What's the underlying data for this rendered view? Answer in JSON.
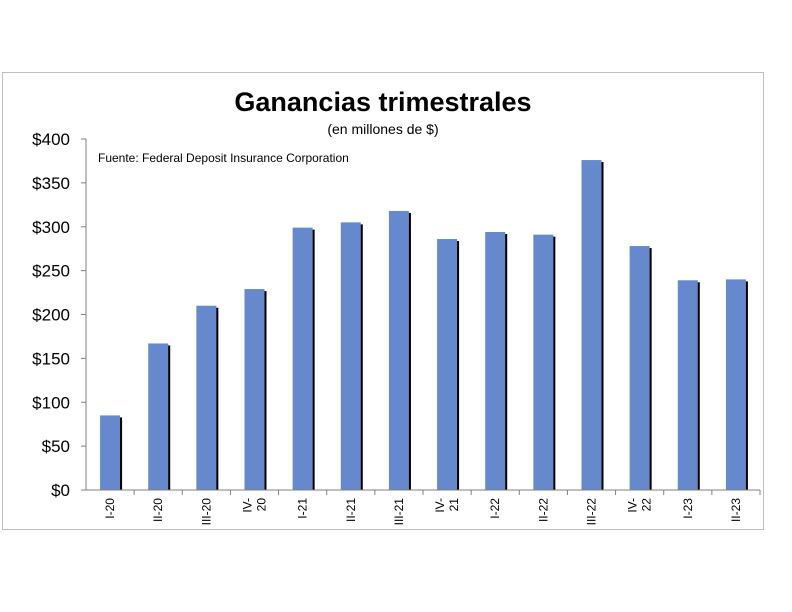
{
  "chart_data": {
    "type": "bar",
    "title": "Ganancias trimestrales",
    "subtitle": "(en millones de $)",
    "source": "Fuente: Federal Deposit Insurance Corporation",
    "xlabel": "",
    "ylabel": "",
    "categories": [
      [
        "I-20"
      ],
      [
        "II-20"
      ],
      [
        "III-20"
      ],
      [
        "IV-",
        "20"
      ],
      [
        "I-21"
      ],
      [
        "II-21"
      ],
      [
        "III-21"
      ],
      [
        "IV-",
        "21"
      ],
      [
        "I-22"
      ],
      [
        "II-22"
      ],
      [
        "III-22"
      ],
      [
        "IV-",
        "22"
      ],
      [
        "I-23"
      ],
      [
        "II-23"
      ]
    ],
    "values": [
      85,
      167,
      210,
      229,
      299,
      305,
      318,
      286,
      294,
      291,
      376,
      278,
      239,
      240
    ],
    "ylim": [
      0,
      400
    ],
    "yticks": [
      "$0",
      "$50",
      "$100",
      "$150",
      "$200",
      "$250",
      "$300",
      "$350",
      "$400"
    ],
    "grid": false,
    "legend": "none",
    "colors": {
      "bar": "#6688cc",
      "bar_shadow": "#000000",
      "axis": "#808080"
    }
  }
}
